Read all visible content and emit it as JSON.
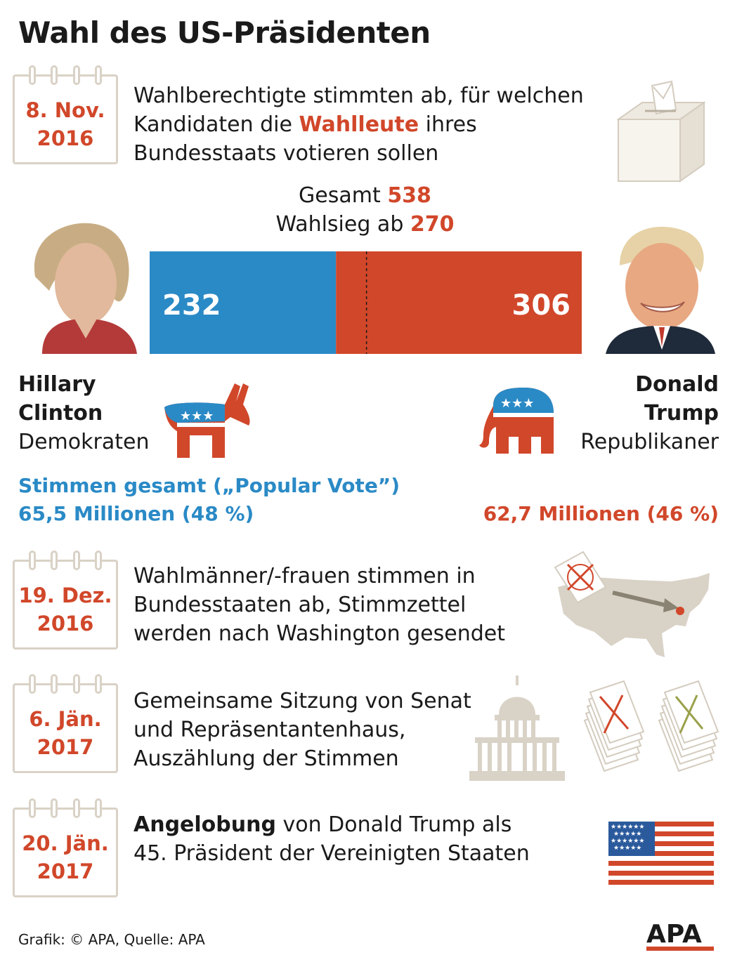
{
  "title": "Wahl des US-Präsidenten",
  "step1": {
    "date_line1": "8. Nov.",
    "date_line2": "2016",
    "text_before": "Wahlberechtigte stimmten ab, für welchen",
    "text_line2_before": "Kandidaten die ",
    "text_highlight": "Wahlleute",
    "text_line2_after": " ihres",
    "text_line3": "Bundesstaats votieren sollen",
    "icon": "ballot-box-icon"
  },
  "totals": {
    "total_label": "Gesamt",
    "total_value": "538",
    "win_label": "Wahlsieg ab",
    "win_value": "270"
  },
  "chart_data": {
    "type": "bar",
    "orientation": "horizontal-stacked",
    "categories": [
      "Hillary Clinton",
      "Donald Trump"
    ],
    "values": [
      232,
      306
    ],
    "total": 538,
    "threshold": 270,
    "colors": [
      "#2a8ac6",
      "#d1472a"
    ]
  },
  "clinton": {
    "first": "Hillary",
    "last": "Clinton",
    "party": "Demokraten",
    "icon": "democrat-donkey-icon"
  },
  "trump": {
    "first": "Donald",
    "last": "Trump",
    "party": "Republikaner",
    "icon": "republican-elephant-icon"
  },
  "popular_vote": {
    "label": "Stimmen gesamt („Popular Vote”)",
    "clinton": "65,5 Millionen (48 %)",
    "trump": "62,7 Millionen (46 %)"
  },
  "step2": {
    "date_line1": "19. Dez.",
    "date_line2": "2016",
    "line1": "Wahlmänner/-frauen stimmen in",
    "line2": "Bundesstaaten ab, Stimmzettel",
    "line3": "werden nach Washington gesendet",
    "icon": "us-map-ballot-icon"
  },
  "step3": {
    "date_line1": "6. Jän.",
    "date_line2": "2017",
    "line1": "Gemeinsame Sitzung von Senat",
    "line2": "und Repräsentantenhaus,",
    "line3": "Auszählung der Stimmen",
    "icon": "capitol-ballots-icon"
  },
  "step4": {
    "date_line1": "20. Jän.",
    "date_line2": "2017",
    "highlight": "Angelobung",
    "line1_after": " von Donald Trump als",
    "line2": "45. Präsident  der Vereinigten Staaten",
    "icon": "us-flag-icon"
  },
  "footer": "Grafik: © APA, Quelle: APA",
  "logo": "APA",
  "colors": {
    "democrat": "#2a8ac6",
    "republican": "#d1472a",
    "neutral": "#d9d2c6"
  }
}
